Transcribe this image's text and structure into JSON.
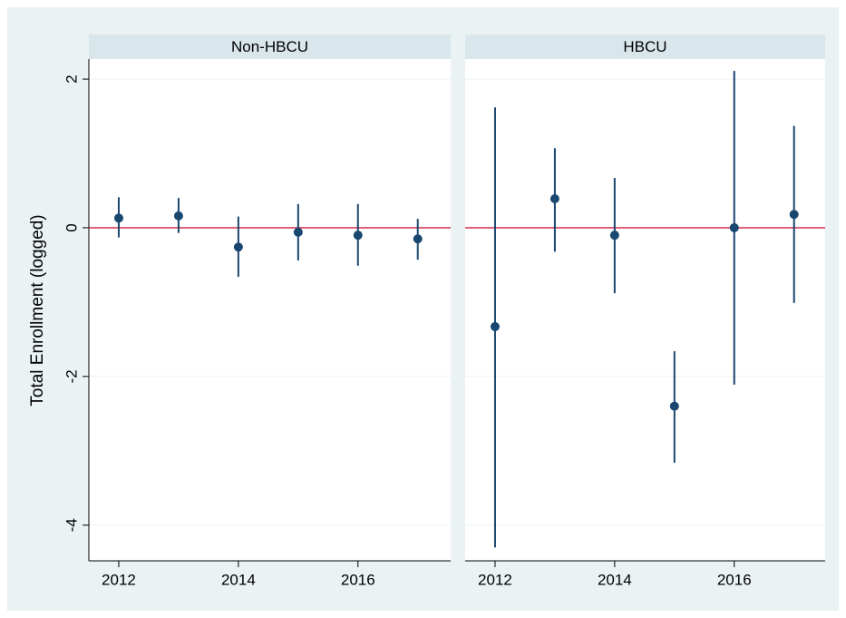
{
  "chart_data": [
    {
      "type": "errorbar",
      "title": "Non-HBCU",
      "ylabel": "Total Enrollment (logged)",
      "x": [
        2012,
        2013,
        2014,
        2015,
        2016,
        2017
      ],
      "values": [
        0.13,
        0.16,
        -0.26,
        -0.06,
        -0.1,
        -0.15
      ],
      "upper": [
        0.41,
        0.4,
        0.15,
        0.32,
        0.32,
        0.12
      ],
      "lower": [
        -0.13,
        -0.07,
        -0.66,
        -0.44,
        -0.51,
        -0.43
      ],
      "color": "#1a476f",
      "xlim": [
        2011.5,
        2017.55
      ],
      "xticks": [
        2012,
        2014,
        2016
      ],
      "ylim": [
        -4.48,
        2.27
      ],
      "yticks": [
        -4,
        -2,
        0,
        2
      ],
      "show_ytick_labels": true,
      "grid": true,
      "refline": 0,
      "refline_color": "#d22d4b"
    },
    {
      "type": "errorbar",
      "title": "HBCU",
      "x": [
        2012,
        2013,
        2014,
        2015,
        2016,
        2017
      ],
      "values": [
        -1.33,
        0.39,
        -0.1,
        -2.4,
        0.0,
        0.18
      ],
      "upper": [
        1.62,
        1.07,
        0.67,
        -1.66,
        2.11,
        1.37
      ],
      "lower": [
        -4.3,
        -0.32,
        -0.88,
        -3.16,
        -2.11,
        -1.01
      ],
      "color": "#1a476f",
      "xlim": [
        2011.5,
        2017.52
      ],
      "xticks": [
        2012,
        2014,
        2016
      ],
      "ylim": [
        -4.48,
        2.27
      ],
      "yticks": [
        -4,
        -2,
        0,
        2
      ],
      "show_ytick_labels": false,
      "grid": true,
      "refline": 0,
      "refline_color": "#d22d4b"
    }
  ]
}
